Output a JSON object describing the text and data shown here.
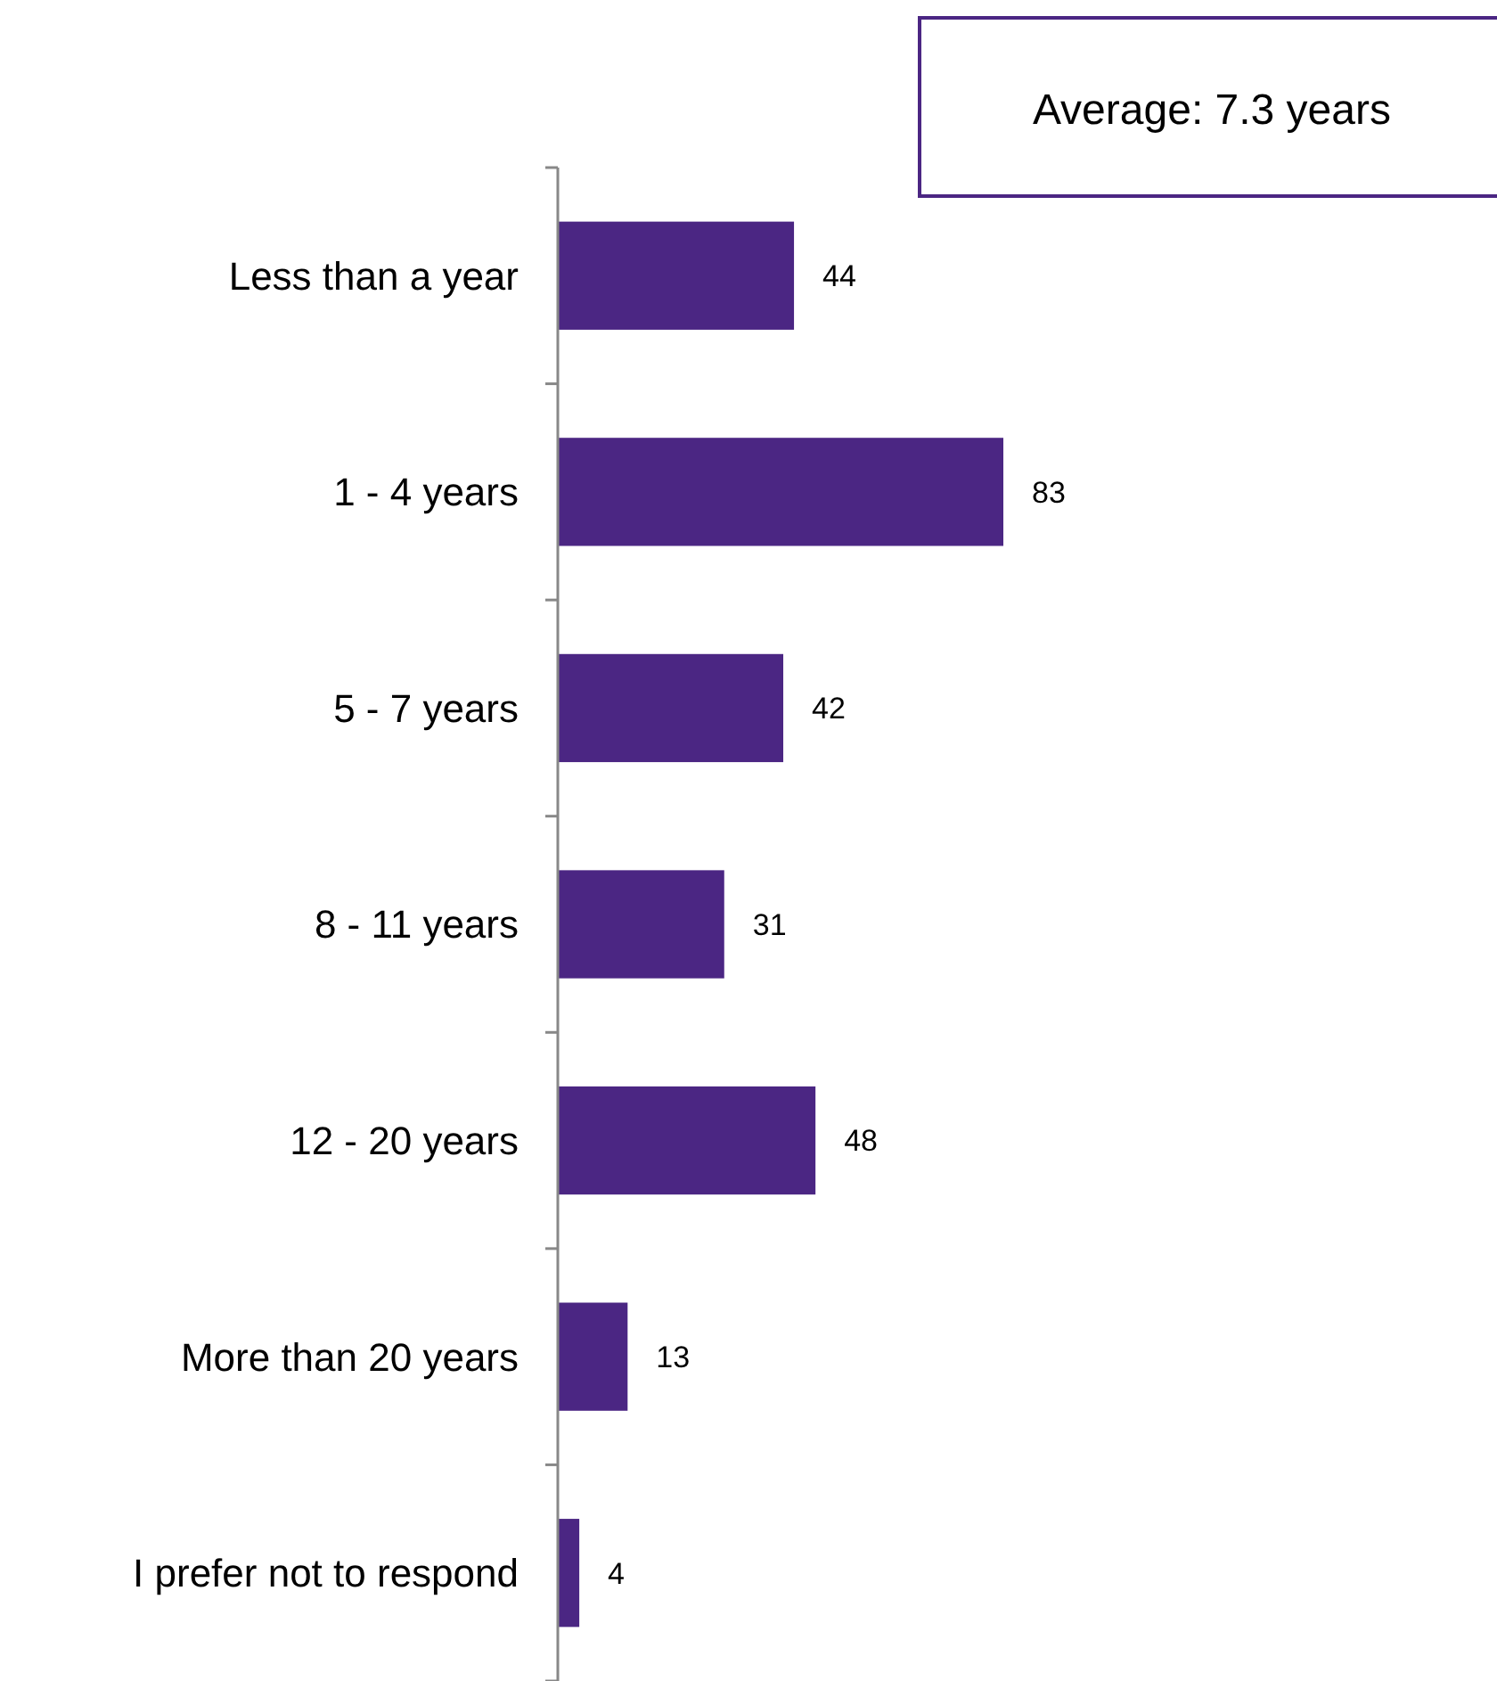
{
  "chart_data": {
    "type": "bar",
    "orientation": "horizontal",
    "categories": [
      "Less than a year",
      "1 - 4 years",
      "5 - 7 years",
      "8 - 11 years",
      "12 - 20 years",
      "More than 20 years",
      "I prefer not to respond"
    ],
    "values": [
      44,
      83,
      42,
      31,
      48,
      13,
      4
    ],
    "color": "#4b2683",
    "data_labels": true,
    "annotations": [
      "Average: 7.3 years"
    ]
  }
}
